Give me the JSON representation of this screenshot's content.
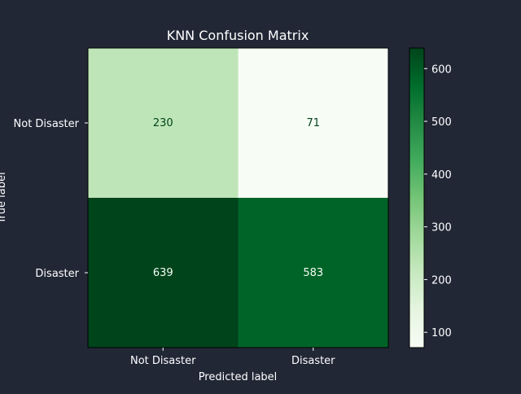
{
  "chart_data": {
    "type": "heatmap",
    "title": "KNN Confusion Matrix",
    "xlabel": "Predicted label",
    "ylabel": "True label",
    "row_labels": [
      "Not Disaster",
      "Disaster"
    ],
    "col_labels": [
      "Not Disaster",
      "Disaster"
    ],
    "values": [
      [
        230,
        71
      ],
      [
        639,
        583
      ]
    ],
    "colormap": "Greens",
    "colorbar": {
      "min": 71,
      "max": 639,
      "ticks": [
        100,
        200,
        300,
        400,
        500,
        600
      ],
      "tick_labels": [
        "100",
        "200",
        "300",
        "400",
        "500",
        "600"
      ]
    },
    "colors": {
      "background": "#222736",
      "text": "#ffffff",
      "dark_annotation": "#00441b",
      "light_annotation": "#f7fcf5"
    }
  }
}
